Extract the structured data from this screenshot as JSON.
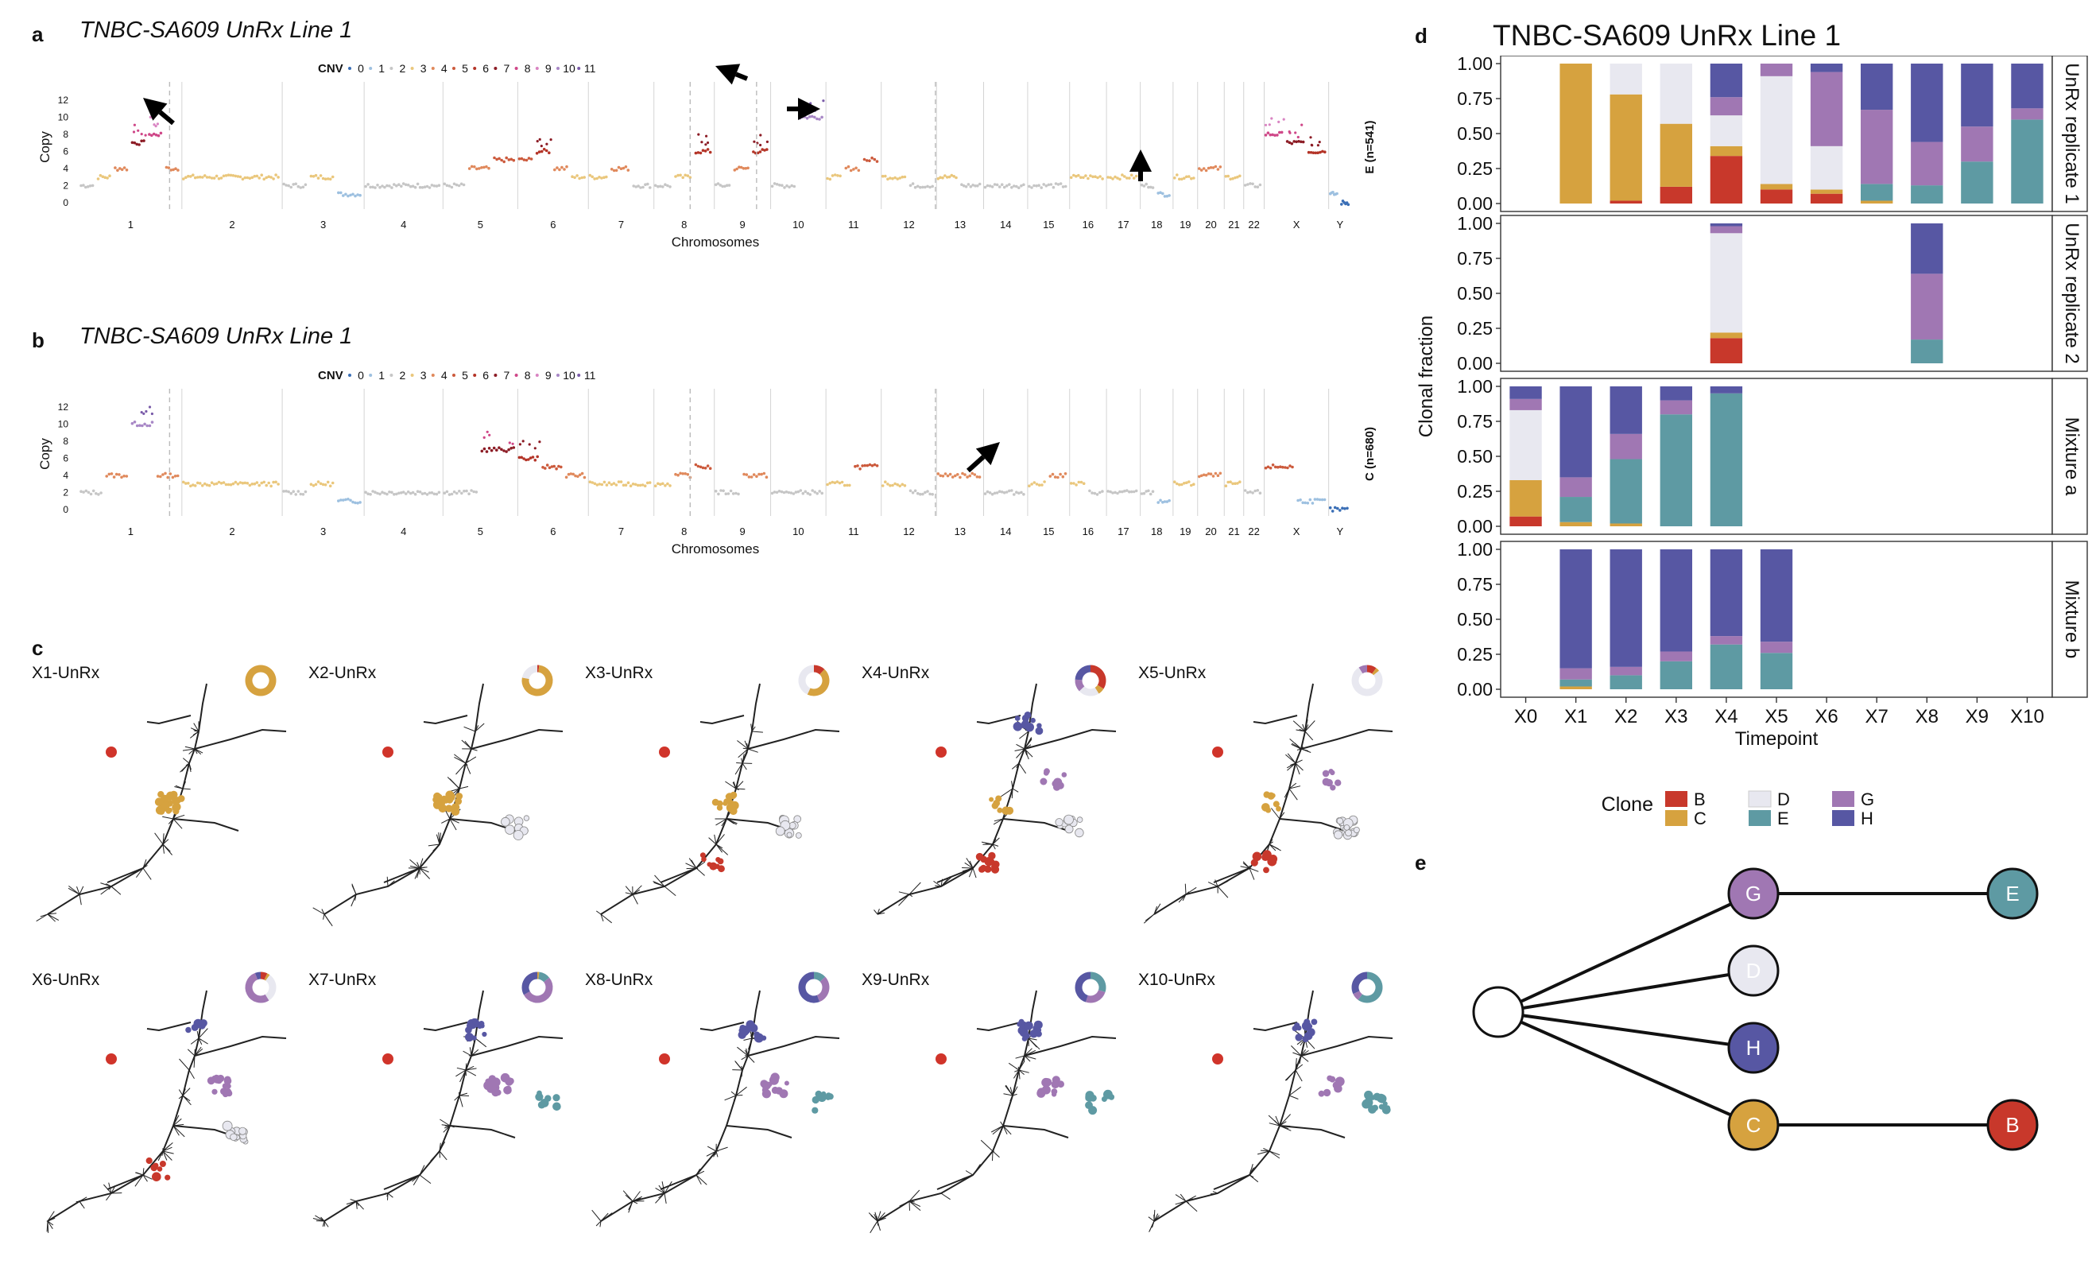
{
  "panels": {
    "a": {
      "letter": "a",
      "title": "TNBC-SA609 UnRx Line 1",
      "side_label": "E (n=541)",
      "xlabel": "Chromosomes",
      "ylabel": "Copy"
    },
    "b": {
      "letter": "b",
      "title": "TNBC-SA609 UnRx Line 1",
      "side_label": "C (n=680)",
      "xlabel": "Chromosomes",
      "ylabel": "Copy"
    },
    "c": {
      "letter": "c",
      "trees": [
        {
          "label": "X1-UnRx",
          "fractions": {
            "C": 1.0
          }
        },
        {
          "label": "X2-UnRx",
          "fractions": {
            "B": 0.02,
            "C": 0.76,
            "D": 0.22
          }
        },
        {
          "label": "X3-UnRx",
          "fractions": {
            "B": 0.12,
            "C": 0.45,
            "D": 0.43
          }
        },
        {
          "label": "X4-UnRx",
          "fractions": {
            "B": 0.34,
            "C": 0.07,
            "D": 0.22,
            "G": 0.13,
            "H": 0.24
          }
        },
        {
          "label": "X5-UnRx",
          "fractions": {
            "B": 0.1,
            "C": 0.04,
            "D": 0.77,
            "G": 0.09
          }
        },
        {
          "label": "X6-UnRx",
          "fractions": {
            "B": 0.07,
            "C": 0.03,
            "D": 0.31,
            "G": 0.53,
            "H": 0.06
          }
        },
        {
          "label": "X7-UnRx",
          "fractions": {
            "C": 0.02,
            "E": 0.12,
            "G": 0.53,
            "H": 0.33
          }
        },
        {
          "label": "X8-UnRx",
          "fractions": {
            "E": 0.13,
            "G": 0.31,
            "H": 0.56
          }
        },
        {
          "label": "X9-UnRx",
          "fractions": {
            "E": 0.3,
            "G": 0.25,
            "H": 0.45
          }
        },
        {
          "label": "X10-UnRx",
          "fractions": {
            "E": 0.6,
            "G": 0.08,
            "H": 0.32
          }
        }
      ]
    },
    "d": {
      "letter": "d",
      "title": "TNBC-SA609 UnRx Line 1"
    },
    "e": {
      "letter": "e",
      "nodes": [
        {
          "id": "root",
          "label": ""
        },
        {
          "id": "G",
          "label": "G"
        },
        {
          "id": "E",
          "label": "E"
        },
        {
          "id": "D",
          "label": "D"
        },
        {
          "id": "H",
          "label": "H"
        },
        {
          "id": "C",
          "label": "C"
        },
        {
          "id": "B",
          "label": "B"
        }
      ],
      "edges": [
        [
          "root",
          "G"
        ],
        [
          "G",
          "E"
        ],
        [
          "root",
          "D"
        ],
        [
          "root",
          "H"
        ],
        [
          "root",
          "C"
        ],
        [
          "C",
          "B"
        ]
      ]
    }
  },
  "cnv_legend": {
    "title": "CNV",
    "states": [
      "0",
      "1",
      "2",
      "3",
      "4",
      "5",
      "6",
      "7",
      "8",
      "9",
      "10",
      "11"
    ],
    "colors": [
      "#3b6fb6",
      "#9dc0e0",
      "#c6c6c6",
      "#eac77c",
      "#e0895c",
      "#cc5a3c",
      "#b43427",
      "#8c1c25",
      "#cf4788",
      "#d984c2",
      "#a887c6",
      "#7a5ba9"
    ]
  },
  "clone_colors": {
    "B": "#c8382b",
    "C": "#d6a23f",
    "D": "#e8e8f0",
    "E": "#5e9aa3",
    "G": "#a077b3",
    "H": "#5757a3"
  },
  "chart_data": [
    {
      "type": "scatter",
      "title": "TNBC-SA609 UnRx Line 1",
      "xlabel": "Chromosomes",
      "ylabel": "Copy",
      "ylim": [
        0,
        13
      ],
      "yticks": [
        0,
        2,
        4,
        6,
        8,
        10,
        12
      ],
      "chromosomes": [
        "1",
        "2",
        "3",
        "4",
        "5",
        "6",
        "7",
        "8",
        "9",
        "10",
        "11",
        "12",
        "13",
        "14",
        "15",
        "16",
        "17",
        "18",
        "19",
        "20",
        "21",
        "22",
        "X",
        "Y"
      ],
      "series": [
        {
          "name": "E (n=541)",
          "segments": [
            {
              "chr": "1",
              "copy": [
                2,
                3,
                4,
                7,
                8,
                4
              ]
            },
            {
              "chr": "2",
              "copy": [
                3
              ]
            },
            {
              "chr": "3",
              "copy": [
                2,
                3,
                1
              ]
            },
            {
              "chr": "4",
              "copy": [
                2
              ]
            },
            {
              "chr": "5",
              "copy": [
                2,
                4,
                5
              ]
            },
            {
              "chr": "6",
              "copy": [
                5,
                6,
                4,
                3
              ]
            },
            {
              "chr": "7",
              "copy": [
                3,
                4,
                2
              ]
            },
            {
              "chr": "8",
              "copy": [
                2,
                3,
                6
              ]
            },
            {
              "chr": "9",
              "copy": [
                2,
                4,
                6
              ]
            },
            {
              "chr": "10",
              "copy": [
                2,
                10
              ]
            },
            {
              "chr": "11",
              "copy": [
                3,
                4,
                5
              ]
            },
            {
              "chr": "12",
              "copy": [
                3,
                2
              ]
            },
            {
              "chr": "13",
              "copy": [
                3,
                2
              ]
            },
            {
              "chr": "14",
              "copy": [
                2
              ]
            },
            {
              "chr": "15",
              "copy": [
                2
              ]
            },
            {
              "chr": "16",
              "copy": [
                3
              ]
            },
            {
              "chr": "17",
              "copy": [
                3
              ]
            },
            {
              "chr": "18",
              "copy": [
                2,
                1
              ]
            },
            {
              "chr": "19",
              "copy": [
                3
              ]
            },
            {
              "chr": "20",
              "copy": [
                4
              ]
            },
            {
              "chr": "21",
              "copy": [
                3
              ]
            },
            {
              "chr": "22",
              "copy": [
                2
              ]
            },
            {
              "chr": "X",
              "copy": [
                8,
                7,
                6
              ]
            },
            {
              "chr": "Y",
              "copy": [
                1,
                0
              ]
            }
          ]
        }
      ],
      "annotations": [
        "arrow at chr1 ~8",
        "arrow at chr8 ~11",
        "arrow at chr9/10 ~6",
        "arrow at chr18 ~2"
      ]
    },
    {
      "type": "scatter",
      "title": "TNBC-SA609 UnRx Line 1",
      "xlabel": "Chromosomes",
      "ylabel": "Copy",
      "ylim": [
        0,
        13
      ],
      "yticks": [
        0,
        2,
        4,
        6,
        8,
        10,
        12
      ],
      "chromosomes": [
        "1",
        "2",
        "3",
        "4",
        "5",
        "6",
        "7",
        "8",
        "9",
        "10",
        "11",
        "12",
        "13",
        "14",
        "15",
        "16",
        "17",
        "18",
        "19",
        "20",
        "21",
        "22",
        "X",
        "Y"
      ],
      "series": [
        {
          "name": "C (n=680)",
          "segments": [
            {
              "chr": "1",
              "copy": [
                2,
                4,
                10,
                4
              ]
            },
            {
              "chr": "2",
              "copy": [
                3
              ]
            },
            {
              "chr": "3",
              "copy": [
                2,
                3,
                1
              ]
            },
            {
              "chr": "4",
              "copy": [
                2
              ]
            },
            {
              "chr": "5",
              "copy": [
                2,
                7
              ]
            },
            {
              "chr": "6",
              "copy": [
                6,
                5,
                4
              ]
            },
            {
              "chr": "7",
              "copy": [
                3
              ]
            },
            {
              "chr": "8",
              "copy": [
                3,
                4,
                5
              ]
            },
            {
              "chr": "9",
              "copy": [
                2,
                4
              ]
            },
            {
              "chr": "10",
              "copy": [
                2
              ]
            },
            {
              "chr": "11",
              "copy": [
                3,
                5
              ]
            },
            {
              "chr": "12",
              "copy": [
                3,
                2
              ]
            },
            {
              "chr": "13",
              "copy": [
                4
              ]
            },
            {
              "chr": "14",
              "copy": [
                2
              ]
            },
            {
              "chr": "15",
              "copy": [
                3,
                4
              ]
            },
            {
              "chr": "16",
              "copy": [
                3,
                2
              ]
            },
            {
              "chr": "17",
              "copy": [
                2
              ]
            },
            {
              "chr": "18",
              "copy": [
                2,
                1
              ]
            },
            {
              "chr": "19",
              "copy": [
                3
              ]
            },
            {
              "chr": "20",
              "copy": [
                4
              ]
            },
            {
              "chr": "21",
              "copy": [
                3
              ]
            },
            {
              "chr": "22",
              "copy": [
                2
              ]
            },
            {
              "chr": "X",
              "copy": [
                5,
                1
              ]
            },
            {
              "chr": "Y",
              "copy": [
                0
              ]
            }
          ]
        }
      ],
      "annotations": [
        "arrow at chr13 ~4"
      ]
    },
    {
      "type": "bar",
      "stacked": true,
      "title": "TNBC-SA609 UnRx Line 1",
      "xlabel": "Timepoint",
      "ylabel": "Clonal fraction",
      "ylim": [
        0,
        1
      ],
      "yticks": [
        "0.00",
        "0.25",
        "0.50",
        "0.75",
        "1.00"
      ],
      "categories": [
        "X0",
        "X1",
        "X2",
        "X3",
        "X4",
        "X5",
        "X6",
        "X7",
        "X8",
        "X9",
        "X10"
      ],
      "legend": {
        "title": "Clone",
        "position": "bottom",
        "entries": [
          "B",
          "C",
          "D",
          "E",
          "G",
          "H"
        ]
      },
      "facets": [
        {
          "name": "UnRx replicate 1",
          "bars": [
            null,
            {
              "C": 1.0
            },
            {
              "B": 0.02,
              "C": 0.76,
              "D": 0.22
            },
            {
              "B": 0.12,
              "C": 0.45,
              "D": 0.43
            },
            {
              "B": 0.34,
              "C": 0.07,
              "D": 0.22,
              "G": 0.13,
              "H": 0.24
            },
            {
              "B": 0.1,
              "C": 0.04,
              "D": 0.77,
              "G": 0.09
            },
            {
              "B": 0.07,
              "C": 0.03,
              "D": 0.31,
              "G": 0.53,
              "H": 0.06
            },
            {
              "C": 0.02,
              "E": 0.12,
              "G": 0.53,
              "H": 0.33
            },
            {
              "E": 0.13,
              "G": 0.31,
              "H": 0.56
            },
            {
              "E": 0.3,
              "G": 0.25,
              "H": 0.45
            },
            {
              "E": 0.6,
              "G": 0.08,
              "H": 0.32
            }
          ]
        },
        {
          "name": "UnRx replicate 2",
          "bars": [
            null,
            null,
            null,
            null,
            {
              "B": 0.18,
              "C": 0.04,
              "D": 0.71,
              "G": 0.05,
              "H": 0.02
            },
            null,
            null,
            null,
            {
              "E": 0.17,
              "G": 0.47,
              "H": 0.36
            },
            null,
            null
          ]
        },
        {
          "name": "Mixture a",
          "bars": [
            {
              "B": 0.07,
              "C": 0.26,
              "D": 0.5,
              "G": 0.08,
              "H": 0.09
            },
            {
              "C": 0.03,
              "E": 0.18,
              "G": 0.14,
              "H": 0.65
            },
            {
              "C": 0.02,
              "E": 0.46,
              "G": 0.18,
              "H": 0.34
            },
            {
              "E": 0.8,
              "G": 0.1,
              "H": 0.1
            },
            {
              "E": 0.95,
              "H": 0.05
            },
            null,
            null,
            null,
            null,
            null,
            null
          ]
        },
        {
          "name": "Mixture b",
          "bars": [
            null,
            {
              "C": 0.02,
              "E": 0.05,
              "G": 0.08,
              "H": 0.85
            },
            {
              "E": 0.1,
              "G": 0.06,
              "H": 0.84
            },
            {
              "E": 0.2,
              "G": 0.07,
              "H": 0.73
            },
            {
              "E": 0.32,
              "G": 0.06,
              "H": 0.62
            },
            {
              "E": 0.26,
              "G": 0.08,
              "H": 0.66
            },
            null,
            null,
            null,
            null,
            null
          ]
        }
      ]
    }
  ]
}
